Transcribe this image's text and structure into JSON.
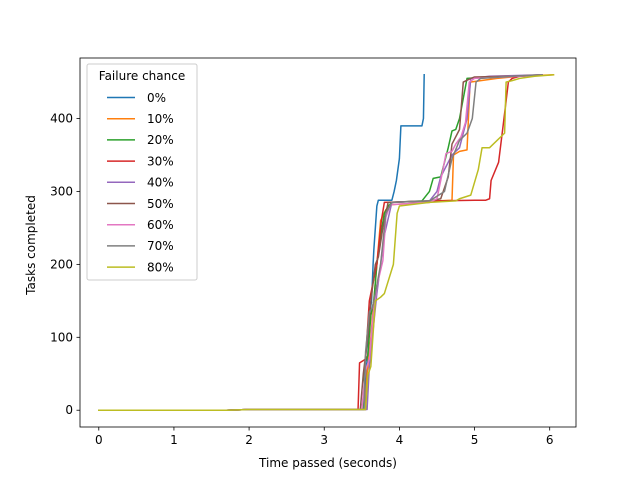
{
  "chart_data": {
    "type": "line",
    "title": "",
    "xlabel": "Time passed (seconds)",
    "ylabel": "Tasks completed",
    "xlim": [
      -0.25,
      6.35
    ],
    "ylim": [
      -23,
      483
    ],
    "xticks": [
      0,
      1,
      2,
      3,
      4,
      5,
      6
    ],
    "yticks": [
      0,
      100,
      200,
      300,
      400
    ],
    "grid": false,
    "legend": {
      "title": "Failure chance",
      "placement": "top-left"
    },
    "series": [
      {
        "name": "0%",
        "color": "#1f77b4",
        "x": [
          0,
          1.7,
          2.0,
          3.55,
          3.56,
          3.58,
          3.6,
          3.63,
          3.65,
          3.66,
          3.68,
          3.7,
          3.72,
          3.9,
          3.93,
          3.96,
          4.0,
          4.02,
          4.3,
          4.32,
          4.33
        ],
        "y": [
          0,
          0,
          1,
          1,
          60,
          75,
          130,
          150,
          200,
          220,
          250,
          280,
          288,
          288,
          300,
          315,
          345,
          390,
          390,
          400,
          460
        ]
      },
      {
        "name": "10%",
        "color": "#ff7f0e",
        "x": [
          0,
          1.7,
          2.0,
          3.55,
          3.57,
          3.62,
          3.66,
          3.7,
          3.75,
          3.82,
          3.9,
          4.4,
          4.5,
          4.7,
          4.72,
          4.8,
          4.9,
          4.94,
          5.3,
          5.5,
          5.6,
          6.05
        ],
        "y": [
          0,
          0,
          1,
          1,
          50,
          100,
          150,
          200,
          260,
          275,
          282,
          285,
          287,
          288,
          350,
          355,
          357,
          450,
          455,
          457,
          458,
          460
        ]
      },
      {
        "name": "20%",
        "color": "#2ca02c",
        "x": [
          0,
          1.7,
          2.0,
          3.52,
          3.54,
          3.58,
          3.62,
          3.66,
          3.7,
          3.75,
          3.8,
          3.85,
          3.9,
          4.3,
          4.4,
          4.45,
          4.55,
          4.6,
          4.65,
          4.7,
          4.75,
          4.8,
          4.9,
          5.2,
          5.5,
          5.8,
          5.9
        ],
        "y": [
          0,
          0,
          1,
          1,
          65,
          75,
          130,
          150,
          200,
          240,
          270,
          280,
          285,
          287,
          300,
          318,
          320,
          340,
          360,
          383,
          385,
          400,
          455,
          457,
          458,
          459,
          460
        ]
      },
      {
        "name": "30%",
        "color": "#d62728",
        "x": [
          0,
          1.7,
          2.0,
          3.45,
          3.47,
          3.55,
          3.6,
          3.7,
          3.76,
          3.8,
          4.5,
          5.0,
          5.15,
          5.2,
          5.22,
          5.32,
          5.38,
          5.45,
          5.5,
          5.6,
          5.9
        ],
        "y": [
          0,
          0,
          1,
          1,
          65,
          70,
          150,
          200,
          260,
          285,
          287,
          288,
          288,
          290,
          315,
          340,
          390,
          450,
          455,
          458,
          460
        ]
      },
      {
        "name": "40%",
        "color": "#9467bd",
        "x": [
          0,
          1.7,
          2.0,
          3.57,
          3.6,
          3.65,
          3.7,
          3.8,
          3.9,
          4.4,
          4.5,
          4.55,
          4.6,
          4.7,
          4.8,
          4.9,
          4.95,
          5.2,
          5.9
        ],
        "y": [
          0,
          0,
          1,
          1,
          60,
          110,
          160,
          240,
          285,
          287,
          300,
          320,
          330,
          350,
          360,
          400,
          455,
          458,
          460
        ]
      },
      {
        "name": "50%",
        "color": "#8c564b",
        "x": [
          0,
          1.7,
          2.0,
          3.48,
          3.52,
          3.58,
          3.62,
          3.68,
          3.72,
          3.78,
          3.85,
          4.4,
          4.55,
          4.65,
          4.7,
          4.8,
          4.85,
          4.95,
          5.0,
          5.5,
          5.9
        ],
        "y": [
          0,
          0,
          1,
          1,
          50,
          100,
          150,
          200,
          210,
          250,
          285,
          287,
          290,
          320,
          365,
          385,
          450,
          455,
          457,
          458,
          460
        ]
      },
      {
        "name": "60%",
        "color": "#e377c2",
        "x": [
          0,
          1.7,
          2.0,
          3.5,
          3.55,
          3.6,
          3.65,
          3.7,
          3.78,
          3.82,
          3.88,
          4.4,
          4.5,
          4.58,
          4.62,
          4.7,
          4.75,
          4.82,
          4.88,
          4.93,
          5.0,
          5.6,
          5.9
        ],
        "y": [
          0,
          0,
          1,
          1,
          55,
          70,
          130,
          170,
          205,
          265,
          282,
          285,
          290,
          330,
          352,
          355,
          365,
          375,
          395,
          450,
          455,
          458,
          460
        ]
      },
      {
        "name": "70%",
        "color": "#7f7f7f",
        "x": [
          0,
          1.7,
          2.0,
          3.53,
          3.55,
          3.6,
          3.64,
          3.68,
          3.75,
          3.82,
          3.9,
          4.4,
          4.6,
          4.7,
          4.8,
          4.9,
          4.97,
          5.02,
          5.08,
          5.5,
          5.9
        ],
        "y": [
          0,
          0,
          1,
          1,
          80,
          135,
          140,
          160,
          200,
          270,
          285,
          287,
          300,
          345,
          370,
          380,
          400,
          450,
          455,
          458,
          460
        ]
      },
      {
        "name": "80%",
        "color": "#bcbd22",
        "x": [
          0,
          1.7,
          2.0,
          3.55,
          3.58,
          3.62,
          3.68,
          3.75,
          3.8,
          3.92,
          3.97,
          4.0,
          4.4,
          4.75,
          4.8,
          4.95,
          5.05,
          5.1,
          5.2,
          5.4,
          5.42,
          5.5,
          5.6,
          5.8,
          6.05
        ],
        "y": [
          0,
          0,
          1,
          1,
          48,
          60,
          150,
          155,
          160,
          200,
          270,
          280,
          285,
          287,
          290,
          295,
          330,
          360,
          360,
          380,
          450,
          452,
          455,
          458,
          460
        ]
      }
    ]
  }
}
